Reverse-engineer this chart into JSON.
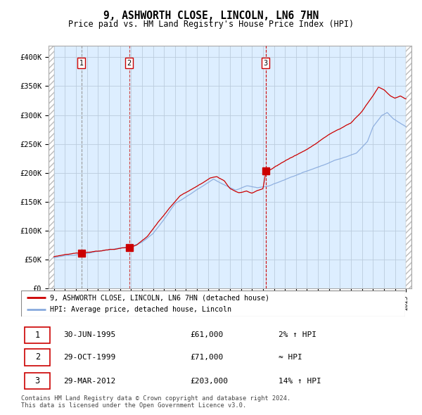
{
  "title": "9, ASHWORTH CLOSE, LINCOLN, LN6 7HN",
  "subtitle": "Price paid vs. HM Land Registry's House Price Index (HPI)",
  "ylim": [
    0,
    420000
  ],
  "yticks": [
    0,
    50000,
    100000,
    150000,
    200000,
    250000,
    300000,
    350000,
    400000
  ],
  "ytick_labels": [
    "£0",
    "£50K",
    "£100K",
    "£150K",
    "£200K",
    "£250K",
    "£300K",
    "£350K",
    "£400K"
  ],
  "xlim_start": 1992.5,
  "xlim_end": 2025.5,
  "sale_dates": [
    1995.5,
    1999.83,
    2012.25
  ],
  "sale_prices": [
    61000,
    71000,
    203000
  ],
  "sale_labels": [
    "1",
    "2",
    "3"
  ],
  "hpi_color": "#88aadd",
  "price_color": "#cc0000",
  "sale_dot_color": "#cc0000",
  "vline_color_12": "#aaaaaa",
  "vline_color_3": "#cc0000",
  "bg_chart_color": "#ddeeff",
  "bg_hatch_color": "#cccccc",
  "grid_color": "#bbccdd",
  "legend_label_price": "9, ASHWORTH CLOSE, LINCOLN, LN6 7HN (detached house)",
  "legend_label_hpi": "HPI: Average price, detached house, Lincoln",
  "table_rows": [
    {
      "num": "1",
      "date": "30-JUN-1995",
      "price": "£61,000",
      "vs_hpi": "2% ↑ HPI"
    },
    {
      "num": "2",
      "date": "29-OCT-1999",
      "price": "£71,000",
      "vs_hpi": "≈ HPI"
    },
    {
      "num": "3",
      "date": "29-MAR-2012",
      "price": "£203,000",
      "vs_hpi": "14% ↑ HPI"
    }
  ],
  "footnote": "Contains HM Land Registry data © Crown copyright and database right 2024.\nThis data is licensed under the Open Government Licence v3.0."
}
